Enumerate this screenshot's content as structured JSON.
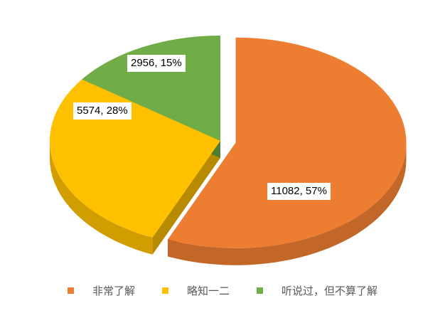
{
  "chart_data": {
    "type": "pie",
    "style": "3d-exploded",
    "title": "",
    "slices": [
      {
        "name": "非常了解",
        "value": 11082,
        "percent": "57%",
        "color": "#ED7D31",
        "label": "11082, 57%"
      },
      {
        "name": "略知一二",
        "value": 5574,
        "percent": "28%",
        "color": "#FFC000",
        "label": "5574, 28%"
      },
      {
        "name": "听说过，但不算了解",
        "value": 2956,
        "percent": "15%",
        "color": "#70AD47",
        "label": "2956, 15%"
      }
    ],
    "legend_position": "bottom"
  }
}
